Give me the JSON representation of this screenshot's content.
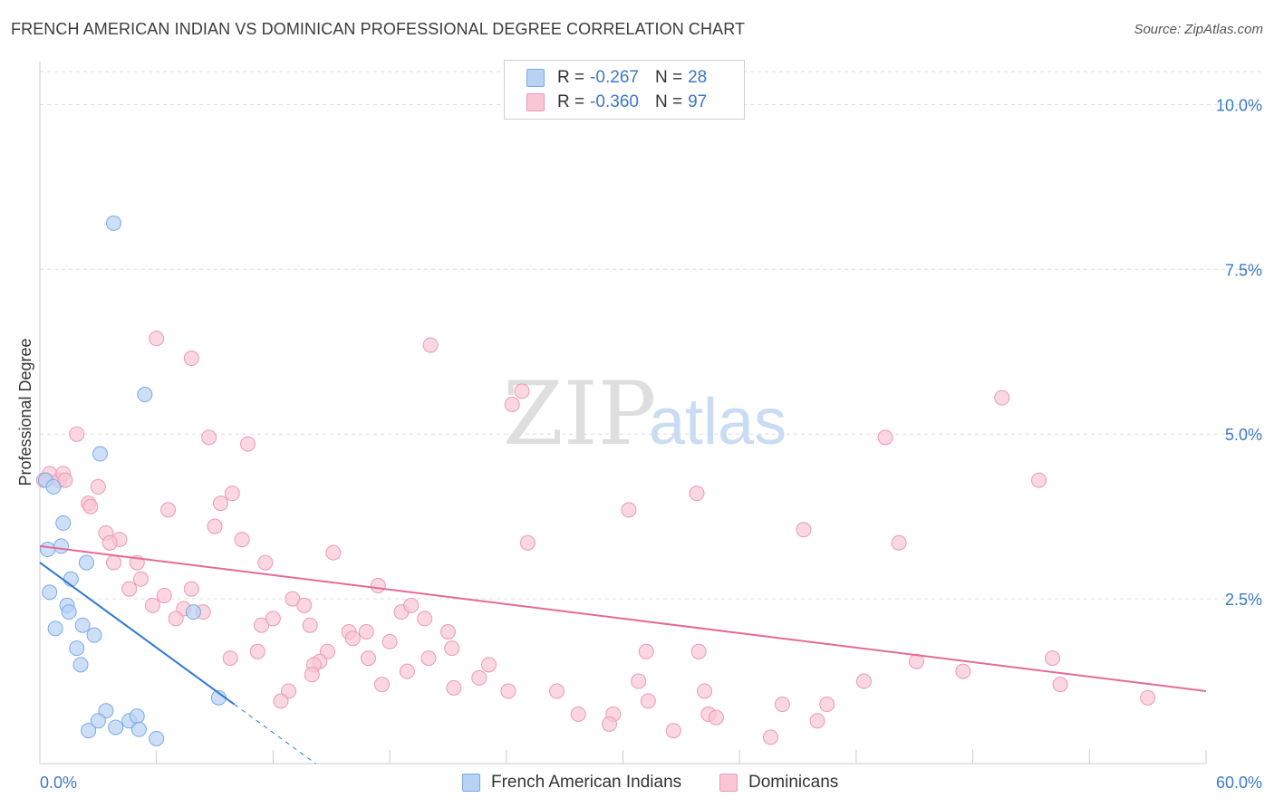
{
  "header": {
    "title": "FRENCH AMERICAN INDIAN VS DOMINICAN PROFESSIONAL DEGREE CORRELATION CHART",
    "source": "Source: ZipAtlas.com"
  },
  "watermark": {
    "zip": "ZIP",
    "atlas": "atlas"
  },
  "legend": {
    "rows": [
      {
        "r_label": "R =",
        "r_value": "-0.267",
        "n_label": "N =",
        "n_value": "28"
      },
      {
        "r_label": "R =",
        "r_value": "-0.360",
        "n_label": "N =",
        "n_value": "97"
      }
    ]
  },
  "bottom_legend": {
    "french": "French American Indians",
    "dominican": "Dominicans"
  },
  "colors": {
    "french_fill": "#b8d2f3",
    "french_stroke": "#7aaae6",
    "french_line": "#2f78d4",
    "dom_fill": "#f8c6d4",
    "dom_stroke": "#eb9ab3",
    "dom_line": "#e46a96",
    "tick_text": "#3b78c7",
    "grid": "#dddddd"
  },
  "chart_data": {
    "type": "scatter",
    "title": "FRENCH AMERICAN INDIAN VS DOMINICAN PROFESSIONAL DEGREE CORRELATION CHART",
    "xlabel": "",
    "ylabel": "Professional Degree",
    "xlim": [
      0,
      60
    ],
    "ylim": [
      0,
      10.5
    ],
    "x_tick_labels": {
      "min": "0.0%",
      "max": "60.0%"
    },
    "x_minor_ticks": [
      0,
      6,
      12,
      18,
      24,
      30,
      36,
      42,
      48,
      54,
      60
    ],
    "y_ticks": [
      2.5,
      5.0,
      7.5,
      10.0
    ],
    "y_tick_labels": [
      "2.5%",
      "5.0%",
      "7.5%",
      "10.0%"
    ],
    "grid": true,
    "series": [
      {
        "name": "French American Indians",
        "r": -0.267,
        "n": 28,
        "trend": {
          "x0": 0,
          "y0": 3.05,
          "x1": 10.0,
          "y1": 0.9,
          "dash_to_x": 14.2
        },
        "points": [
          [
            0.3,
            4.3
          ],
          [
            0.7,
            4.2
          ],
          [
            3.8,
            8.2
          ],
          [
            5.4,
            5.6
          ],
          [
            3.1,
            4.7
          ],
          [
            1.2,
            3.65
          ],
          [
            1.1,
            3.3
          ],
          [
            0.4,
            3.25
          ],
          [
            2.4,
            3.05
          ],
          [
            1.6,
            2.8
          ],
          [
            0.5,
            2.6
          ],
          [
            1.4,
            2.4
          ],
          [
            1.5,
            2.3
          ],
          [
            7.9,
            2.3
          ],
          [
            0.8,
            2.05
          ],
          [
            2.2,
            2.1
          ],
          [
            2.8,
            1.95
          ],
          [
            1.9,
            1.75
          ],
          [
            2.1,
            1.5
          ],
          [
            9.2,
            1.0
          ],
          [
            3.4,
            0.8
          ],
          [
            3.0,
            0.65
          ],
          [
            2.5,
            0.5
          ],
          [
            3.9,
            0.55
          ],
          [
            4.6,
            0.65
          ],
          [
            5.0,
            0.72
          ],
          [
            5.1,
            0.52
          ],
          [
            6.0,
            0.38
          ]
        ]
      },
      {
        "name": "Dominicans",
        "r": -0.36,
        "n": 97,
        "trend": {
          "x0": 0,
          "y0": 3.3,
          "x1": 60,
          "y1": 1.1
        },
        "points": [
          [
            0.5,
            4.4
          ],
          [
            1.0,
            4.3
          ],
          [
            1.2,
            4.4
          ],
          [
            1.9,
            5.0
          ],
          [
            3.0,
            4.2
          ],
          [
            2.5,
            3.95
          ],
          [
            2.6,
            3.9
          ],
          [
            3.4,
            3.5
          ],
          [
            4.1,
            3.4
          ],
          [
            3.6,
            3.35
          ],
          [
            6.0,
            6.45
          ],
          [
            7.8,
            6.15
          ],
          [
            8.7,
            4.95
          ],
          [
            10.7,
            4.85
          ],
          [
            9.9,
            4.1
          ],
          [
            9.3,
            3.95
          ],
          [
            6.6,
            3.85
          ],
          [
            9.0,
            3.6
          ],
          [
            10.4,
            3.4
          ],
          [
            5.0,
            3.05
          ],
          [
            3.8,
            3.05
          ],
          [
            11.6,
            3.05
          ],
          [
            5.2,
            2.8
          ],
          [
            4.6,
            2.65
          ],
          [
            7.8,
            2.65
          ],
          [
            6.4,
            2.55
          ],
          [
            5.8,
            2.4
          ],
          [
            7.4,
            2.35
          ],
          [
            8.4,
            2.3
          ],
          [
            7.0,
            2.2
          ],
          [
            11.4,
            2.1
          ],
          [
            12.0,
            2.2
          ],
          [
            13.0,
            2.5
          ],
          [
            13.6,
            2.4
          ],
          [
            13.9,
            2.1
          ],
          [
            15.1,
            3.2
          ],
          [
            17.4,
            2.7
          ],
          [
            18.6,
            2.3
          ],
          [
            19.1,
            2.4
          ],
          [
            19.8,
            2.2
          ],
          [
            15.9,
            2.0
          ],
          [
            16.8,
            2.0
          ],
          [
            16.1,
            1.9
          ],
          [
            18.0,
            1.85
          ],
          [
            21.0,
            2.0
          ],
          [
            14.8,
            1.7
          ],
          [
            9.8,
            1.6
          ],
          [
            11.2,
            1.7
          ],
          [
            14.4,
            1.55
          ],
          [
            14.1,
            1.5
          ],
          [
            16.9,
            1.6
          ],
          [
            18.9,
            1.4
          ],
          [
            20.0,
            1.6
          ],
          [
            21.2,
            1.75
          ],
          [
            14.0,
            1.35
          ],
          [
            12.8,
            1.1
          ],
          [
            12.4,
            0.95
          ],
          [
            17.6,
            1.2
          ],
          [
            21.3,
            1.15
          ],
          [
            22.6,
            1.3
          ],
          [
            23.1,
            1.5
          ],
          [
            24.1,
            1.1
          ],
          [
            20.1,
            6.35
          ],
          [
            24.3,
            5.45
          ],
          [
            24.8,
            5.65
          ],
          [
            25.1,
            3.35
          ],
          [
            30.3,
            3.85
          ],
          [
            30.8,
            1.25
          ],
          [
            31.2,
            1.7
          ],
          [
            31.3,
            0.95
          ],
          [
            26.6,
            1.1
          ],
          [
            27.7,
            0.75
          ],
          [
            29.5,
            0.75
          ],
          [
            29.3,
            0.6
          ],
          [
            32.6,
            0.5
          ],
          [
            33.8,
            4.1
          ],
          [
            33.9,
            1.7
          ],
          [
            34.2,
            1.1
          ],
          [
            34.4,
            0.75
          ],
          [
            34.8,
            0.7
          ],
          [
            37.6,
            0.4
          ],
          [
            38.2,
            0.9
          ],
          [
            39.3,
            3.55
          ],
          [
            40.0,
            0.65
          ],
          [
            40.5,
            0.9
          ],
          [
            43.5,
            4.95
          ],
          [
            44.2,
            3.35
          ],
          [
            42.4,
            1.25
          ],
          [
            45.1,
            1.55
          ],
          [
            47.5,
            1.4
          ],
          [
            49.5,
            5.55
          ],
          [
            51.4,
            4.3
          ],
          [
            52.1,
            1.6
          ],
          [
            52.5,
            1.2
          ],
          [
            57.0,
            1.0
          ],
          [
            0.2,
            4.3
          ],
          [
            1.3,
            4.3
          ]
        ]
      }
    ]
  }
}
